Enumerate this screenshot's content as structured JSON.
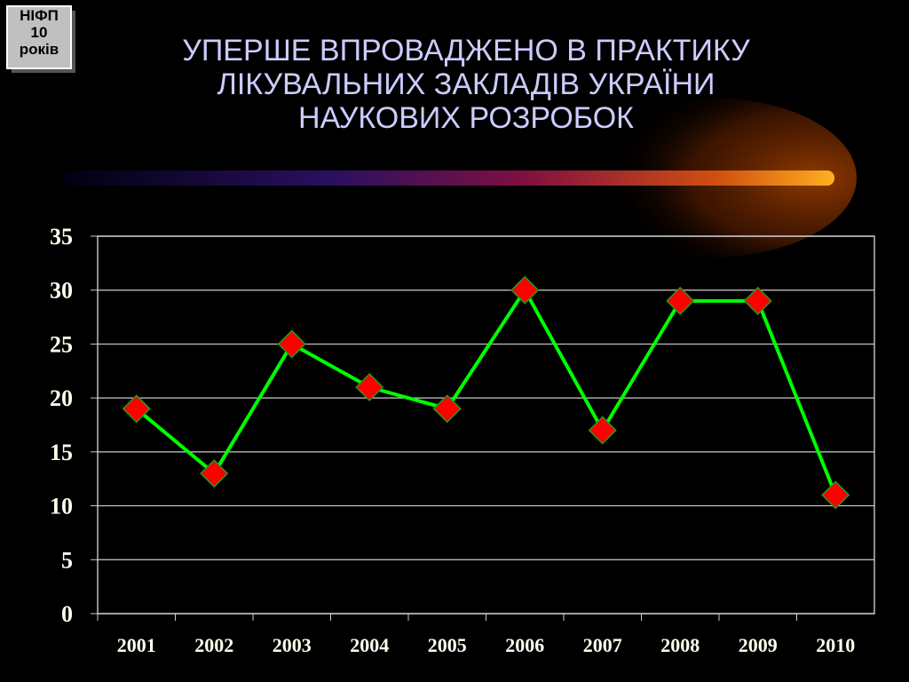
{
  "badge": [
    "НІФП",
    "10",
    "років"
  ],
  "title": [
    "УПЕРШЕ ВПРОВАДЖЕНО В ПРАКТИКУ",
    "ЛІКУВАЛЬНИХ ЗАКЛАДІВ УКРАЇНИ",
    "НАУКОВИХ РОЗРОБОК"
  ],
  "chart_data": {
    "type": "line",
    "categories": [
      "2001",
      "2002",
      "2003",
      "2004",
      "2005",
      "2006",
      "2007",
      "2008",
      "2009",
      "2010"
    ],
    "values": [
      19,
      13,
      25,
      21,
      19,
      30,
      17,
      29,
      29,
      11
    ],
    "color": "#00ff00",
    "marker_color": "#ff0000",
    "ylim": [
      0,
      35
    ],
    "yticks": [
      0,
      5,
      10,
      15,
      20,
      25,
      30,
      35
    ],
    "grid": true
  }
}
